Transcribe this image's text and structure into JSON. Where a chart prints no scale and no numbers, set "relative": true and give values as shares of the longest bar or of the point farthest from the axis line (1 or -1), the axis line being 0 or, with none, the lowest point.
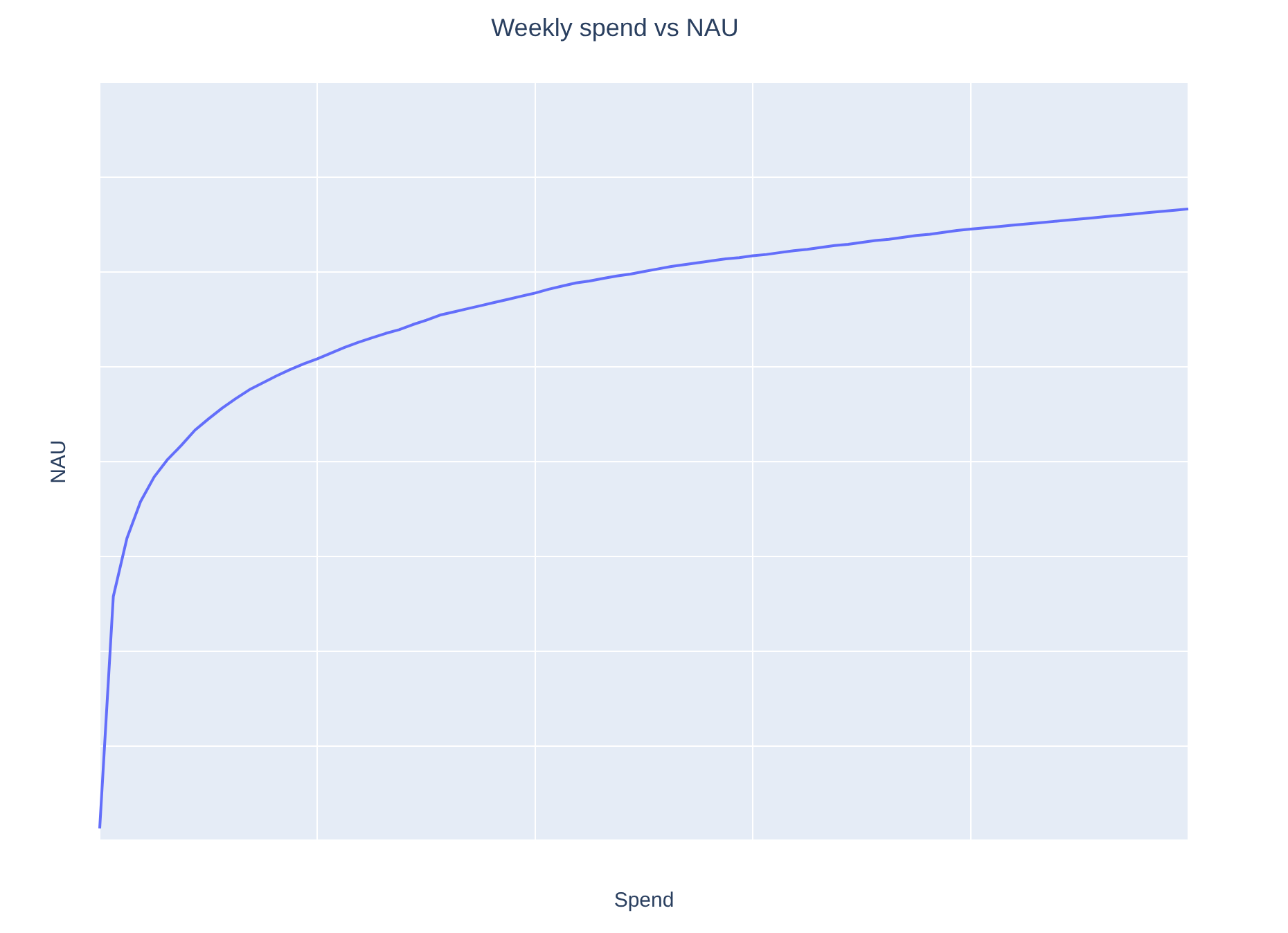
{
  "chart_data": {
    "type": "line",
    "title": "Weekly spend vs NAU",
    "xlabel": "Spend",
    "ylabel": "NAU",
    "relative": true,
    "grid": true,
    "legend": false,
    "marker": "none",
    "line_style": "solid",
    "categories": [
      null,
      null,
      null,
      null,
      null,
      null,
      null,
      null,
      null,
      null,
      null,
      null,
      null,
      null,
      null,
      null,
      null,
      null,
      null,
      null,
      null,
      null,
      null,
      null,
      null,
      null,
      null,
      null,
      null,
      null,
      null,
      null,
      null,
      null,
      null,
      null,
      null,
      null,
      null,
      null,
      null,
      null,
      null,
      null,
      null,
      null,
      null,
      null,
      null,
      null,
      null,
      null,
      null,
      null,
      null,
      null,
      null,
      null,
      null,
      null,
      null,
      null,
      null,
      null,
      null,
      null,
      null,
      null,
      null,
      null,
      null,
      null,
      null,
      null,
      null,
      null,
      null,
      null,
      null,
      null,
      null
    ],
    "series": [
      {
        "color": "#636efa",
        "values": [
          0.02,
          0.387,
          0.479,
          0.537,
          0.576,
          0.604,
          0.626,
          0.65,
          0.668,
          0.685,
          0.7,
          0.714,
          0.725,
          0.736,
          0.746,
          0.755,
          0.763,
          0.772,
          0.781,
          0.789,
          0.796,
          0.803,
          0.809,
          0.817,
          0.824,
          0.832,
          0.837,
          0.842,
          0.847,
          0.852,
          0.857,
          0.862,
          0.867,
          0.873,
          0.878,
          0.883,
          0.886,
          0.89,
          0.894,
          0.897,
          0.901,
          0.905,
          0.909,
          0.912,
          0.915,
          0.918,
          0.921,
          0.923,
          0.926,
          0.928,
          0.931,
          0.934,
          0.936,
          0.939,
          0.942,
          0.944,
          0.947,
          0.95,
          0.952,
          0.955,
          0.958,
          0.96,
          0.963,
          0.966,
          0.968,
          0.97,
          0.972,
          0.974,
          0.976,
          0.978,
          0.98,
          0.982,
          0.984,
          0.986,
          0.988,
          0.99,
          0.992,
          0.994,
          0.996,
          0.998,
          1
        ]
      }
    ]
  }
}
